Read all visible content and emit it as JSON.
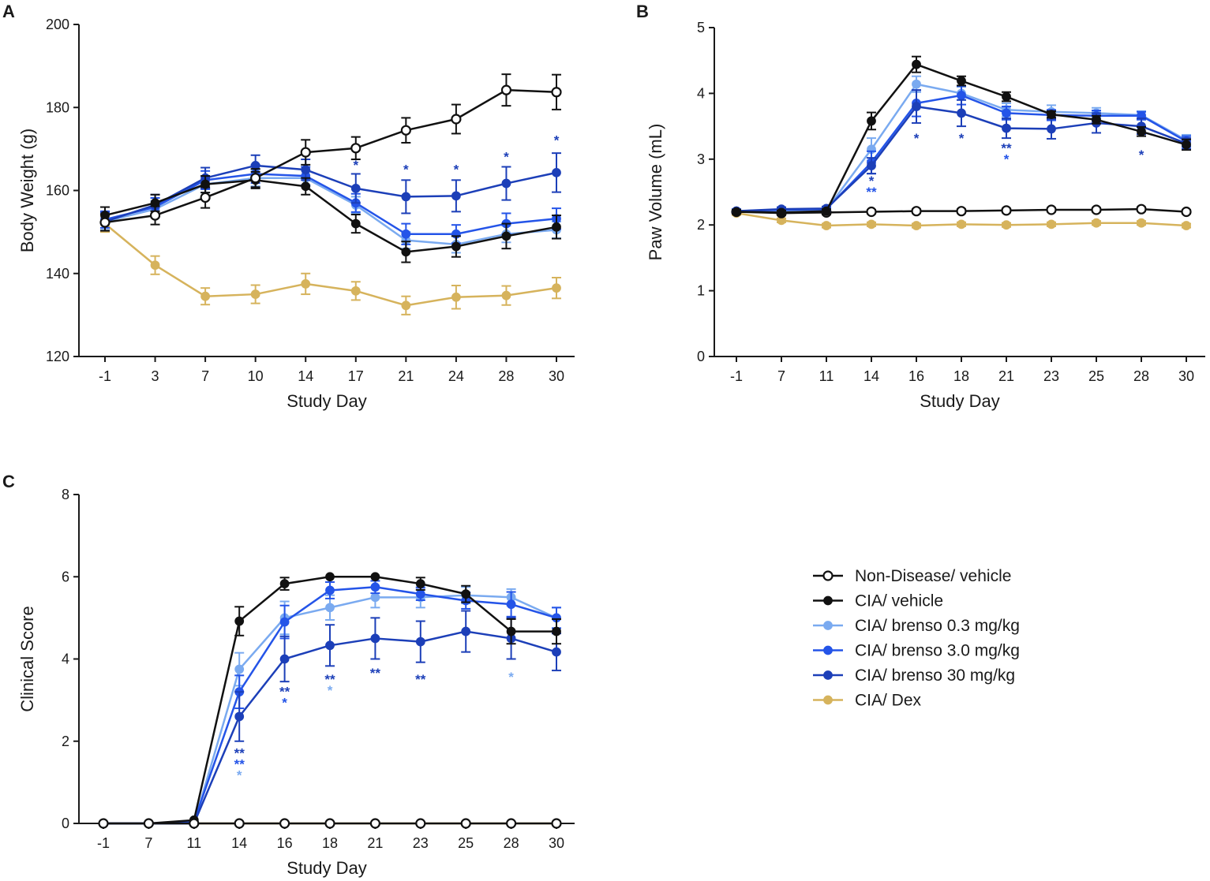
{
  "figure": {
    "legend": {
      "entries": [
        {
          "key": "nd",
          "label": "Non-Disease/ vehicle",
          "color": "#111111",
          "open": true
        },
        {
          "key": "cia",
          "label": "CIA/ vehicle",
          "color": "#111111",
          "open": false
        },
        {
          "key": "b03",
          "label": "CIA/ brenso 0.3 mg/kg",
          "color": "#7aaaf0",
          "open": false
        },
        {
          "key": "b3",
          "label": "CIA/ brenso 3.0 mg/kg",
          "color": "#2454e8",
          "open": false
        },
        {
          "key": "b30",
          "label": "CIA/ brenso 30 mg/kg",
          "color": "#1c3fb8",
          "open": false
        },
        {
          "key": "dex",
          "label": "CIA/ Dex",
          "color": "#d6b35c",
          "open": false
        }
      ]
    }
  },
  "chart_data": [
    {
      "panel": "A",
      "type": "line",
      "xlabel": "Study Day",
      "ylabel": "Body Weight (g)",
      "x": [
        "-1",
        "3",
        "7",
        "10",
        "14",
        "17",
        "21",
        "24",
        "28",
        "30"
      ],
      "ylim": [
        120,
        200
      ],
      "yticks": [
        "120",
        "140",
        "160",
        "180",
        "200"
      ],
      "series": [
        {
          "key": "dex",
          "values": [
            152,
            142,
            134.5,
            135,
            137.5,
            135.8,
            132.3,
            134.3,
            134.7,
            136.5
          ],
          "err": [
            2,
            2.2,
            2,
            2.2,
            2.5,
            2.2,
            2.2,
            2.8,
            2.3,
            2.5
          ]
        },
        {
          "key": "b03",
          "values": [
            152.5,
            155.5,
            161.5,
            163,
            163,
            156.5,
            148,
            147,
            149.5,
            150.5
          ],
          "err": [
            2,
            2,
            2,
            2,
            2,
            2,
            2,
            2,
            2,
            2
          ]
        },
        {
          "key": "b3",
          "values": [
            153,
            156,
            162.5,
            164,
            163.5,
            157,
            149.5,
            149.5,
            152,
            153.2
          ],
          "err": [
            2,
            2.2,
            2.2,
            2.2,
            2.2,
            2.2,
            2.5,
            2.2,
            2.5,
            2.5
          ]
        },
        {
          "key": "b30",
          "values": [
            152.5,
            156.5,
            163,
            166,
            165,
            160.5,
            158.5,
            158.7,
            161.7,
            164.3
          ],
          "err": [
            2.2,
            2.5,
            2.5,
            2.5,
            2.5,
            3.5,
            4,
            3.8,
            4,
            4.7
          ]
        },
        {
          "key": "cia",
          "values": [
            154,
            157,
            161.5,
            162.5,
            161,
            152,
            145.2,
            146.5,
            149,
            151.2
          ],
          "err": [
            2,
            2,
            2,
            2,
            2,
            2.2,
            2.5,
            2.5,
            3,
            2.8
          ]
        },
        {
          "key": "nd",
          "values": [
            152.3,
            154,
            158.3,
            163,
            169.2,
            170.2,
            174.5,
            177.2,
            184.2,
            183.7
          ],
          "err": [
            2,
            2.2,
            2.5,
            2.2,
            3,
            2.7,
            3,
            3.5,
            3.8,
            4.2
          ]
        }
      ],
      "annotations": [
        {
          "x_index": 5,
          "y": 165,
          "lines": [
            {
              "text": "*",
              "key": "b30"
            }
          ]
        },
        {
          "x_index": 6,
          "y": 164,
          "lines": [
            {
              "text": "*",
              "key": "b30"
            }
          ]
        },
        {
          "x_index": 7,
          "y": 164,
          "lines": [
            {
              "text": "*",
              "key": "b30"
            }
          ]
        },
        {
          "x_index": 8,
          "y": 167,
          "lines": [
            {
              "text": "*",
              "key": "b30"
            }
          ]
        },
        {
          "x_index": 9,
          "y": 171,
          "lines": [
            {
              "text": "*",
              "key": "b30"
            }
          ]
        }
      ]
    },
    {
      "panel": "B",
      "type": "line",
      "xlabel": "Study Day",
      "ylabel": "Paw Volume (mL)",
      "x": [
        "-1",
        "7",
        "11",
        "14",
        "16",
        "18",
        "21",
        "23",
        "25",
        "28",
        "30"
      ],
      "ylim": [
        0,
        5
      ],
      "yticks": [
        "0",
        "1",
        "2",
        "3",
        "4",
        "5"
      ],
      "series": [
        {
          "key": "dex",
          "values": [
            2.18,
            2.07,
            1.99,
            2.01,
            1.99,
            2.01,
            2.0,
            2.01,
            2.03,
            2.03,
            1.99
          ],
          "err": [
            0.03,
            0.03,
            0.03,
            0.03,
            0.03,
            0.03,
            0.03,
            0.03,
            0.03,
            0.03,
            0.03
          ]
        },
        {
          "key": "nd",
          "values": [
            2.2,
            2.18,
            2.19,
            2.2,
            2.21,
            2.21,
            2.22,
            2.23,
            2.23,
            2.24,
            2.2
          ],
          "err": [
            0.03,
            0.03,
            0.03,
            0.03,
            0.03,
            0.03,
            0.03,
            0.03,
            0.03,
            0.03,
            0.03
          ]
        },
        {
          "key": "b03",
          "values": [
            2.21,
            2.22,
            2.23,
            3.15,
            4.14,
            4.0,
            3.75,
            3.72,
            3.7,
            3.67,
            3.29
          ],
          "err": [
            0.03,
            0.03,
            0.03,
            0.17,
            0.12,
            0.1,
            0.1,
            0.1,
            0.08,
            0.06,
            0.08
          ]
        },
        {
          "key": "b3",
          "values": [
            2.21,
            2.23,
            2.24,
            2.95,
            3.85,
            3.97,
            3.7,
            3.67,
            3.66,
            3.66,
            3.27
          ],
          "err": [
            0.03,
            0.03,
            0.03,
            0.17,
            0.2,
            0.14,
            0.1,
            0.08,
            0.08,
            0.06,
            0.08
          ]
        },
        {
          "key": "b30",
          "values": [
            2.21,
            2.24,
            2.25,
            2.9,
            3.8,
            3.7,
            3.47,
            3.46,
            3.55,
            3.5,
            3.24
          ],
          "err": [
            0.03,
            0.03,
            0.03,
            0.12,
            0.25,
            0.2,
            0.15,
            0.15,
            0.15,
            0.12,
            0.08
          ]
        },
        {
          "key": "cia",
          "values": [
            2.2,
            2.19,
            2.21,
            3.58,
            4.44,
            4.19,
            3.95,
            3.68,
            3.6,
            3.42,
            3.22
          ],
          "err": [
            0.03,
            0.03,
            0.03,
            0.13,
            0.12,
            0.07,
            0.07,
            0.05,
            0.06,
            0.07,
            0.08
          ]
        }
      ],
      "annotations": [
        {
          "x_index": 3,
          "y": 2.6,
          "lines": [
            {
              "text": "*",
              "key": "b30"
            },
            {
              "text": "**",
              "key": "b3"
            }
          ]
        },
        {
          "x_index": 4,
          "y": 3.25,
          "lines": [
            {
              "text": "*",
              "key": "b30"
            }
          ]
        },
        {
          "x_index": 5,
          "y": 3.25,
          "lines": [
            {
              "text": "*",
              "key": "b30"
            }
          ]
        },
        {
          "x_index": 6,
          "y": 3.1,
          "lines": [
            {
              "text": "**",
              "key": "b30"
            },
            {
              "text": "*",
              "key": "b3"
            }
          ]
        },
        {
          "x_index": 9,
          "y": 3.0,
          "lines": [
            {
              "text": "*",
              "key": "b30"
            }
          ]
        }
      ]
    },
    {
      "panel": "C",
      "type": "line",
      "xlabel": "Study Day",
      "ylabel": "Clinical Score",
      "x": [
        "-1",
        "7",
        "11",
        "14",
        "16",
        "18",
        "21",
        "23",
        "25",
        "28",
        "30"
      ],
      "ylim": [
        0,
        8
      ],
      "yticks": [
        "0",
        "2",
        "4",
        "6",
        "8"
      ],
      "series": [
        {
          "key": "dex",
          "values": [
            0,
            0,
            0,
            0,
            0,
            0,
            0,
            0,
            0,
            0,
            0
          ],
          "err": [
            0,
            0,
            0,
            0,
            0,
            0,
            0,
            0,
            0,
            0,
            0
          ]
        },
        {
          "key": "b03",
          "values": [
            0,
            0,
            0,
            3.75,
            5.0,
            5.25,
            5.5,
            5.5,
            5.55,
            5.5,
            5.0
          ],
          "err": [
            0,
            0,
            0,
            0.4,
            0.4,
            0.3,
            0.25,
            0.25,
            0.2,
            0.2,
            0.25
          ]
        },
        {
          "key": "b3",
          "values": [
            0,
            0,
            0.05,
            3.2,
            4.9,
            5.67,
            5.75,
            5.58,
            5.42,
            5.33,
            5.0
          ],
          "err": [
            0,
            0,
            0,
            0.4,
            0.4,
            0.2,
            0.15,
            0.15,
            0.2,
            0.3,
            0.25
          ]
        },
        {
          "key": "b30",
          "values": [
            0,
            0,
            0,
            2.6,
            4.0,
            4.33,
            4.5,
            4.42,
            4.67,
            4.5,
            4.17
          ],
          "err": [
            0,
            0,
            0,
            0.6,
            0.55,
            0.5,
            0.5,
            0.5,
            0.5,
            0.5,
            0.45
          ]
        },
        {
          "key": "cia",
          "values": [
            0,
            0,
            0.08,
            4.92,
            5.83,
            6.0,
            6.0,
            5.83,
            5.58,
            4.67,
            4.67
          ],
          "err": [
            0,
            0,
            0,
            0.35,
            0.15,
            0,
            0,
            0.15,
            0.2,
            0.3,
            0.3
          ]
        },
        {
          "key": "nd",
          "values": [
            0,
            0,
            0,
            0,
            0,
            0,
            0,
            0,
            0,
            0,
            0
          ],
          "err": [
            0,
            0,
            0,
            0,
            0,
            0,
            0,
            0,
            0,
            0,
            0
          ]
        }
      ],
      "annotations": [
        {
          "x_index": 3,
          "y": 1.6,
          "lines": [
            {
              "text": "**",
              "key": "b30"
            },
            {
              "text": "**",
              "key": "b3"
            },
            {
              "text": "*",
              "key": "b03"
            }
          ]
        },
        {
          "x_index": 4,
          "y": 3.1,
          "lines": [
            {
              "text": "**",
              "key": "b30"
            },
            {
              "text": "*",
              "key": "b3"
            }
          ]
        },
        {
          "x_index": 5,
          "y": 3.4,
          "lines": [
            {
              "text": "**",
              "key": "b30"
            },
            {
              "text": "*",
              "key": "b03"
            }
          ]
        },
        {
          "x_index": 6,
          "y": 3.55,
          "lines": [
            {
              "text": "**",
              "key": "b30"
            }
          ]
        },
        {
          "x_index": 7,
          "y": 3.4,
          "lines": [
            {
              "text": "**",
              "key": "b30"
            }
          ]
        },
        {
          "x_index": 9,
          "y": 3.45,
          "lines": [
            {
              "text": "*",
              "key": "b03"
            }
          ]
        }
      ]
    }
  ]
}
